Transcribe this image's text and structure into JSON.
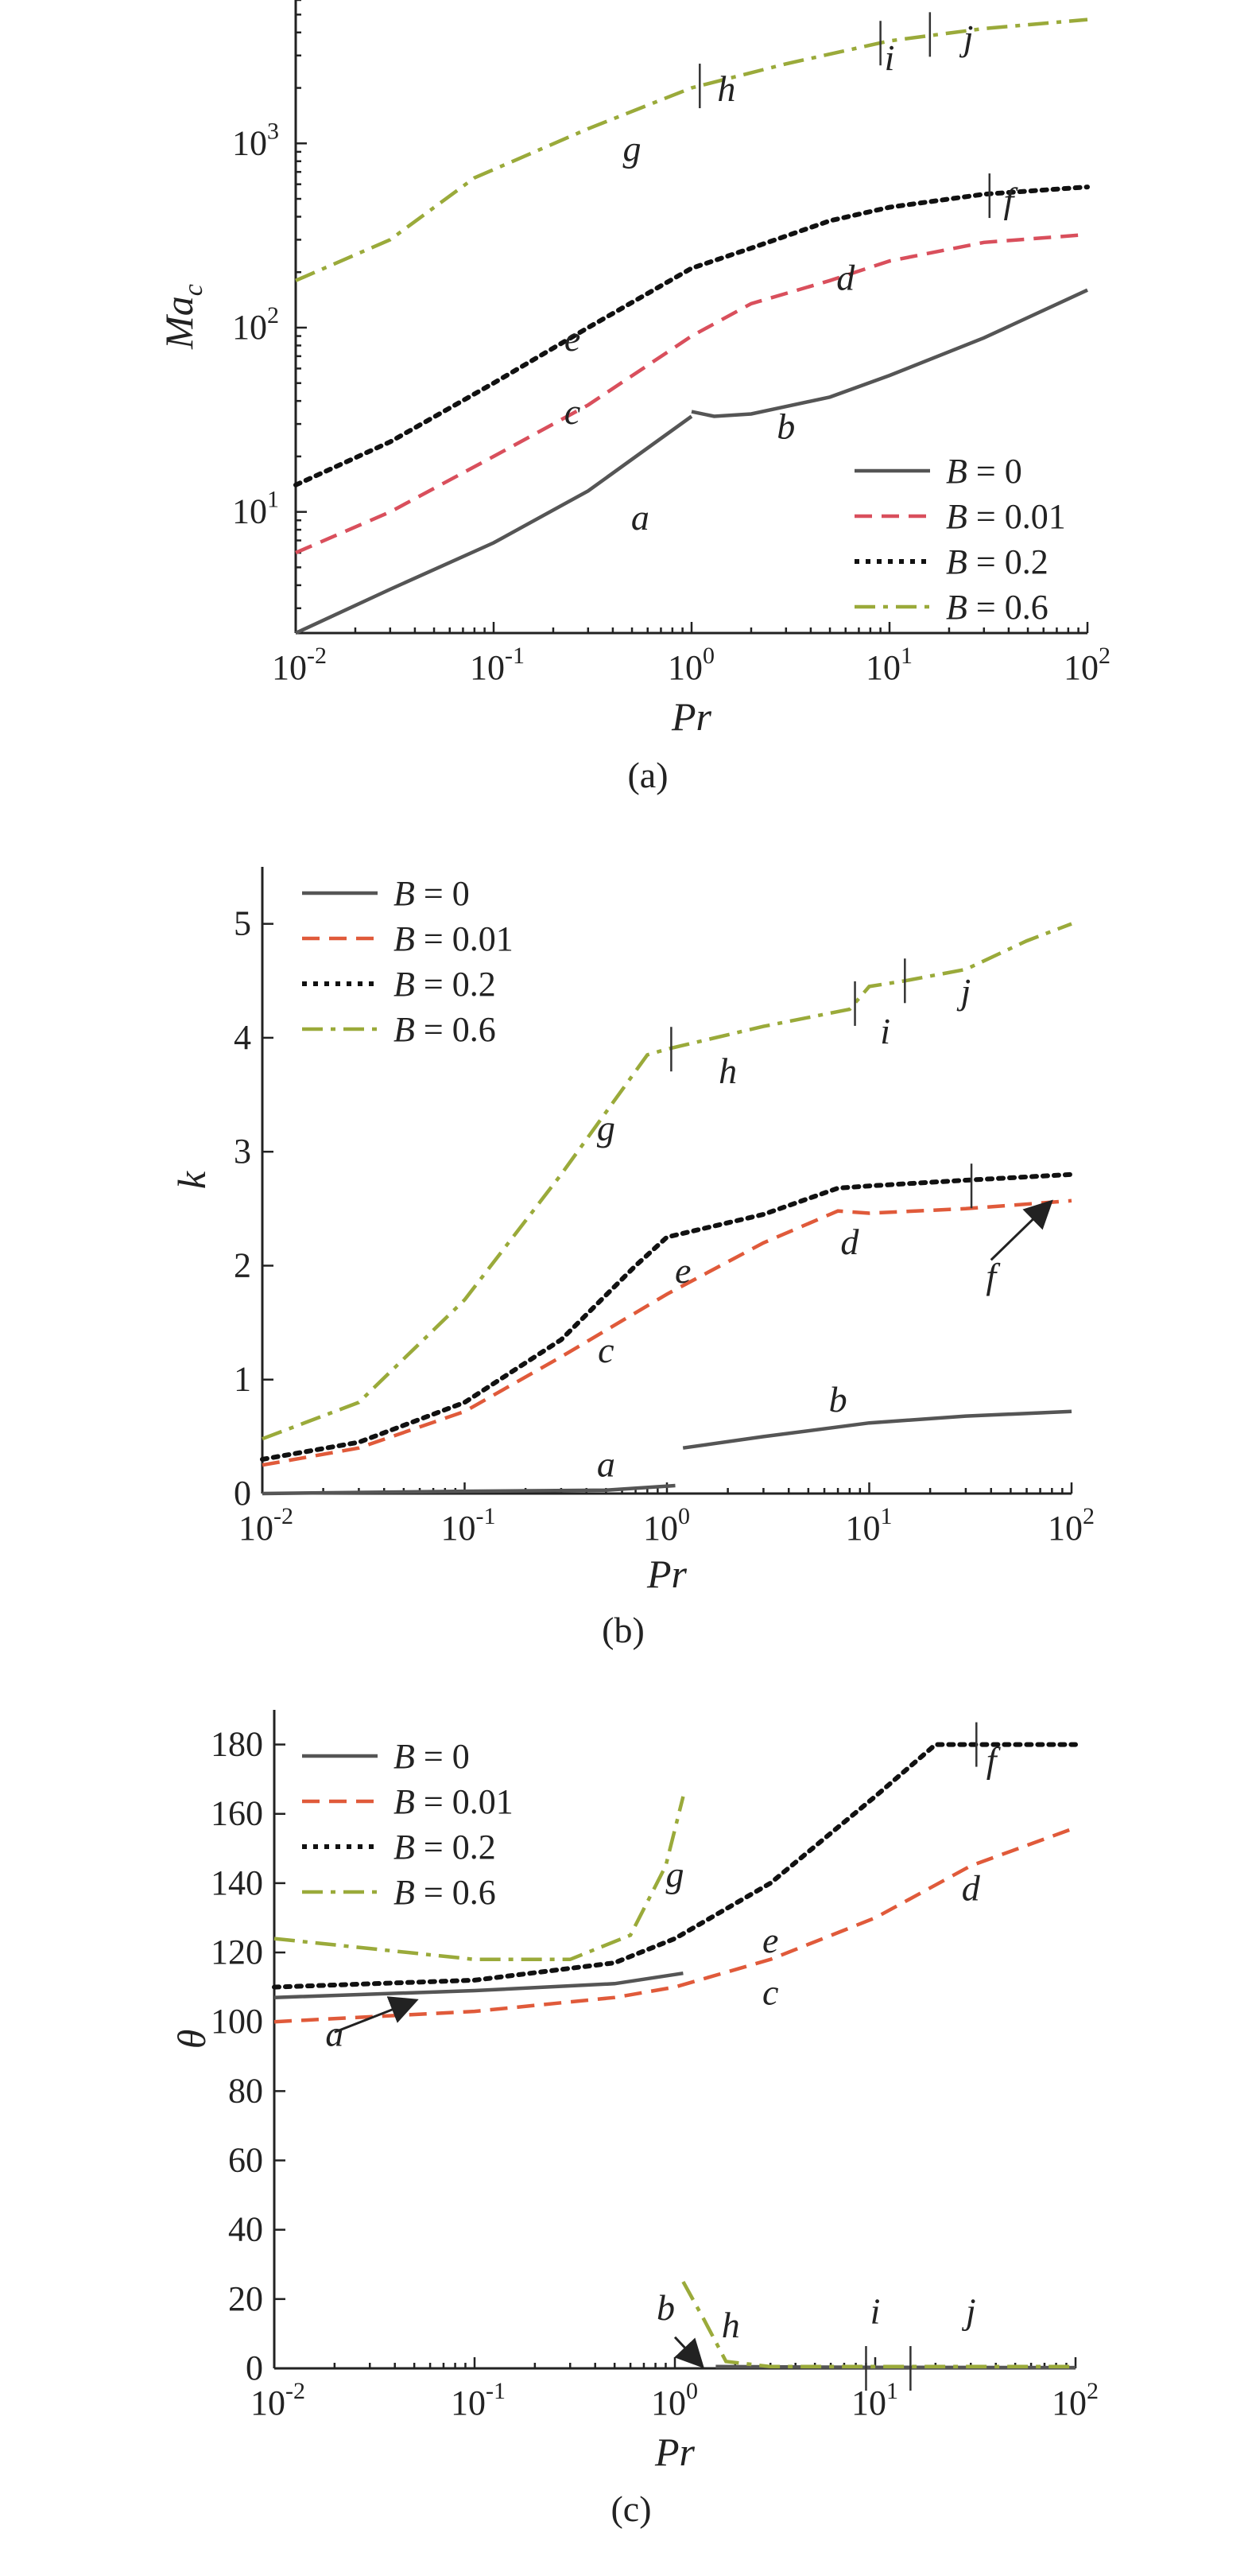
{
  "chart_data": [
    {
      "panel": "(a)",
      "type": "line",
      "xlabel": "Pr",
      "ylabel": "Ma",
      "ylabel_sub": "c",
      "xscale": "log",
      "yscale": "log",
      "xlim": [
        0.01,
        100
      ],
      "ylim": [
        2.2,
        6000
      ],
      "xticks": [
        "10-2",
        "10-1",
        "100",
        "101",
        "102"
      ],
      "xtick_values": [
        0.01,
        0.1,
        1,
        10,
        100
      ],
      "yticks": [
        "101",
        "102",
        "103"
      ],
      "ytick_values": [
        10,
        100,
        1000
      ],
      "legend": {
        "position": "bottom-right",
        "entries": [
          "B = 0",
          "B = 0.01",
          "B = 0.2",
          "B = 0.6"
        ]
      },
      "series": [
        {
          "name": "B = 0",
          "style": "solid",
          "color": "#555555",
          "x": [
            0.01,
            0.03,
            0.1,
            0.3,
            1.0
          ],
          "y": [
            2.2,
            3.8,
            6.8,
            13,
            33
          ]
        },
        {
          "name": "B = 0",
          "style": "solid",
          "color": "#555555",
          "x": [
            1.0,
            1.3,
            2.0,
            5,
            10,
            30,
            100
          ],
          "y": [
            35,
            33,
            34,
            42,
            55,
            88,
            160
          ]
        },
        {
          "name": "B = 0.01",
          "style": "dashed",
          "color": "#d94f5c",
          "x": [
            0.01,
            0.03,
            0.1,
            0.3,
            1,
            2,
            5,
            10,
            30,
            100
          ],
          "y": [
            6,
            10,
            20,
            38,
            90,
            135,
            180,
            230,
            290,
            320
          ]
        },
        {
          "name": "B = 0.2",
          "style": "dotted",
          "color": "#111111",
          "x": [
            0.01,
            0.03,
            0.1,
            0.3,
            1,
            2,
            5,
            10,
            30,
            100
          ],
          "y": [
            14,
            24,
            50,
            100,
            210,
            270,
            380,
            450,
            530,
            580
          ]
        },
        {
          "name": "B = 0.6",
          "style": "dashdot",
          "color": "#9aaa3a",
          "x": [
            0.01,
            0.03,
            0.08,
            0.3,
            1,
            3,
            10,
            30,
            100
          ],
          "y": [
            180,
            300,
            650,
            1200,
            2000,
            2700,
            3600,
            4200,
            4700
          ]
        }
      ],
      "annotations": [
        {
          "text": "a",
          "x": 0.55,
          "y": 8
        },
        {
          "text": "b",
          "x": 3,
          "y": 25
        },
        {
          "text": "c",
          "x": 0.25,
          "y": 30
        },
        {
          "text": "d",
          "x": 6,
          "y": 160
        },
        {
          "text": "e",
          "x": 0.25,
          "y": 75
        },
        {
          "text": "f",
          "x": 40,
          "y": 420
        },
        {
          "text": "g",
          "x": 0.5,
          "y": 800
        },
        {
          "text": "h",
          "x": 1.5,
          "y": 1700
        },
        {
          "text": "i",
          "x": 10,
          "y": 2500
        },
        {
          "text": "j",
          "x": 25,
          "y": 3200
        }
      ],
      "transition_markers": [
        {
          "x": 1.1,
          "y": 2050
        },
        {
          "x": 9,
          "y": 3500
        },
        {
          "x": 16,
          "y": 3900
        },
        {
          "x": 32,
          "y": 520
        }
      ]
    },
    {
      "panel": "(b)",
      "type": "line",
      "xlabel": "Pr",
      "ylabel": "k",
      "xscale": "log",
      "yscale": "linear",
      "xlim": [
        0.01,
        100
      ],
      "ylim": [
        0,
        5.5
      ],
      "xticks": [
        "10-2",
        "10-1",
        "100",
        "101",
        "102"
      ],
      "xtick_values": [
        0.01,
        0.1,
        1,
        10,
        100
      ],
      "yticks": [
        "0",
        "1",
        "2",
        "3",
        "4",
        "5"
      ],
      "ytick_values": [
        0,
        1,
        2,
        3,
        4,
        5
      ],
      "legend": {
        "position": "top-left",
        "entries": [
          "B = 0",
          "B = 0.01",
          "B = 0.2",
          "B = 0.6"
        ]
      },
      "series": [
        {
          "name": "B = 0",
          "style": "solid",
          "color": "#555555",
          "x": [
            0.01,
            0.1,
            0.5,
            1.1
          ],
          "y": [
            0.0,
            0.02,
            0.03,
            0.07
          ]
        },
        {
          "name": "B = 0",
          "style": "solid",
          "color": "#555555",
          "x": [
            1.2,
            3,
            10,
            30,
            100
          ],
          "y": [
            0.4,
            0.5,
            0.62,
            0.68,
            0.72
          ]
        },
        {
          "name": "B = 0.01",
          "style": "dashed",
          "color": "#e05a3a",
          "x": [
            0.01,
            0.03,
            0.1,
            0.3,
            1,
            3,
            7,
            10,
            30,
            100
          ],
          "y": [
            0.25,
            0.4,
            0.72,
            1.2,
            1.75,
            2.2,
            2.48,
            2.46,
            2.5,
            2.57
          ]
        },
        {
          "name": "B = 0.2",
          "style": "dotted",
          "color": "#111111",
          "x": [
            0.01,
            0.03,
            0.1,
            0.3,
            0.7,
            1,
            3,
            7,
            10,
            30,
            100
          ],
          "y": [
            0.3,
            0.45,
            0.8,
            1.35,
            2.0,
            2.25,
            2.45,
            2.68,
            2.7,
            2.75,
            2.8
          ]
        },
        {
          "name": "B = 0.6",
          "style": "dashdot",
          "color": "#9aaa3a",
          "x": [
            0.01,
            0.03,
            0.1,
            0.3,
            0.8,
            1,
            3,
            8,
            10,
            15,
            30,
            60,
            100
          ],
          "y": [
            0.48,
            0.8,
            1.7,
            2.8,
            3.85,
            3.9,
            4.1,
            4.25,
            4.45,
            4.5,
            4.6,
            4.85,
            5.0
          ]
        }
      ],
      "annotations": [
        {
          "text": "a",
          "x": 0.5,
          "y": 0.15
        },
        {
          "text": "b",
          "x": 7,
          "y": 0.72
        },
        {
          "text": "c",
          "x": 0.5,
          "y": 1.15
        },
        {
          "text": "d",
          "x": 8,
          "y": 2.1
        },
        {
          "text": "e",
          "x": 1.2,
          "y": 1.85
        },
        {
          "text": "f",
          "x": 40,
          "y": 1.8
        },
        {
          "text": "g",
          "x": 0.5,
          "y": 3.1
        },
        {
          "text": "h",
          "x": 2,
          "y": 3.6
        },
        {
          "text": "i",
          "x": 12,
          "y": 3.95
        },
        {
          "text": "j",
          "x": 30,
          "y": 4.3
        }
      ],
      "transition_markers": [
        {
          "x": 1.05,
          "y": 3.9
        },
        {
          "x": 8.5,
          "y": 4.3
        },
        {
          "x": 15,
          "y": 4.5
        },
        {
          "x": 32,
          "y": 2.7
        }
      ],
      "arrows": [
        {
          "from": [
            40,
            2.05
          ],
          "to": [
            78,
            2.55
          ]
        }
      ]
    },
    {
      "panel": "(c)",
      "type": "line",
      "xlabel": "Pr",
      "ylabel": "θ",
      "xscale": "log",
      "yscale": "linear",
      "xlim": [
        0.01,
        100
      ],
      "ylim": [
        0,
        190
      ],
      "xticks": [
        "10-2",
        "10-1",
        "100",
        "101",
        "102"
      ],
      "xtick_values": [
        0.01,
        0.1,
        1,
        10,
        100
      ],
      "yticks": [
        "0",
        "20",
        "40",
        "60",
        "80",
        "100",
        "120",
        "140",
        "160",
        "180"
      ],
      "ytick_values": [
        0,
        20,
        40,
        60,
        80,
        100,
        120,
        140,
        160,
        180
      ],
      "legend": {
        "position": "top-left",
        "entries": [
          "B = 0",
          "B = 0.01",
          "B = 0.2",
          "B = 0.6"
        ]
      },
      "series": [
        {
          "name": "B = 0",
          "style": "solid",
          "color": "#555555",
          "x": [
            0.01,
            0.1,
            0.5,
            1.1
          ],
          "y": [
            107,
            109,
            111,
            114
          ]
        },
        {
          "name": "B = 0",
          "style": "solid",
          "color": "#555555",
          "x": [
            1.6,
            10,
            100
          ],
          "y": [
            0.5,
            0.3,
            0.2
          ]
        },
        {
          "name": "B = 0.01",
          "style": "dashed",
          "color": "#e05a3a",
          "x": [
            0.01,
            0.1,
            0.5,
            1,
            3,
            10,
            30,
            100
          ],
          "y": [
            100,
            103,
            107,
            110,
            118,
            130,
            145,
            156
          ]
        },
        {
          "name": "B = 0.2",
          "style": "dotted",
          "color": "#111111",
          "x": [
            0.01,
            0.1,
            0.5,
            1,
            3,
            10,
            20,
            30,
            100
          ],
          "y": [
            110,
            112,
            117,
            124,
            140,
            165,
            180,
            180,
            180
          ]
        },
        {
          "name": "B = 0.6",
          "style": "dashdot",
          "color": "#9aaa3a",
          "x": [
            0.01,
            0.1,
            0.3,
            0.6,
            0.9,
            1.1
          ],
          "y": [
            124,
            118,
            118,
            125,
            145,
            165
          ]
        },
        {
          "name": "B = 0.6",
          "style": "dashdot",
          "color": "#9aaa3a",
          "x": [
            1.1,
            1.4,
            1.8,
            3,
            10,
            100
          ],
          "y": [
            25,
            14,
            2,
            0.5,
            0.5,
            0.5
          ]
        }
      ],
      "annotations": [
        {
          "text": "a",
          "x": 0.02,
          "y": 93
        },
        {
          "text": "b",
          "x": 0.9,
          "y": 14
        },
        {
          "text": "c",
          "x": 3,
          "y": 105
        },
        {
          "text": "d",
          "x": 30,
          "y": 135
        },
        {
          "text": "e",
          "x": 3,
          "y": 120
        },
        {
          "text": "f",
          "x": 38,
          "y": 172
        },
        {
          "text": "g",
          "x": 1.0,
          "y": 139
        },
        {
          "text": "h",
          "x": 1.9,
          "y": 9
        },
        {
          "text": "i",
          "x": 10,
          "y": 13
        },
        {
          "text": "j",
          "x": 30,
          "y": 13
        }
      ],
      "transition_markers": [
        {
          "x": 9,
          "y": 0
        },
        {
          "x": 15,
          "y": 0
        },
        {
          "x": 32,
          "y": 180
        }
      ],
      "arrows": [
        {
          "from": [
            0.02,
            97
          ],
          "to": [
            0.05,
            106
          ]
        },
        {
          "from": [
            1.0,
            9
          ],
          "to": [
            1.35,
            1
          ]
        }
      ]
    }
  ]
}
